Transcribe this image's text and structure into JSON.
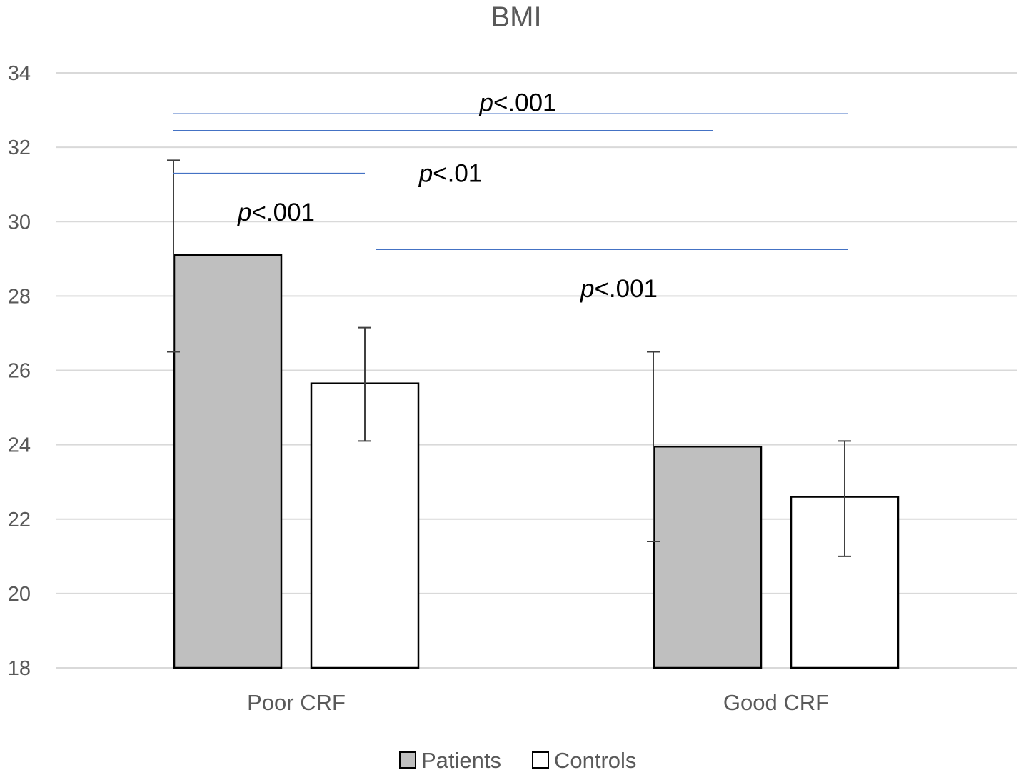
{
  "chart_data": {
    "type": "bar",
    "title": "BMI",
    "xlabel": "",
    "ylabel": "",
    "ylim": [
      18,
      34
    ],
    "yticks": [
      18,
      20,
      22,
      24,
      26,
      28,
      30,
      32,
      34
    ],
    "categories": [
      "Poor CRF",
      "Good CRF"
    ],
    "series": [
      {
        "name": "Patients",
        "color": "#bfbfbf",
        "values": [
          29.1,
          23.95
        ],
        "err_low": [
          26.5,
          21.4
        ],
        "err_high": [
          31.65,
          26.5
        ]
      },
      {
        "name": "Controls",
        "color": "#ffffff",
        "values": [
          25.65,
          22.6
        ],
        "err_low": [
          24.1,
          21.0
        ],
        "err_high": [
          27.15,
          24.1
        ]
      }
    ],
    "legend_position": "bottom",
    "grid": true,
    "annotations": [
      {
        "p_symbol": "p",
        "p_value": "<.001",
        "from": {
          "category": 0,
          "series": 0
        },
        "to": {
          "category": 1,
          "series": 1
        },
        "line_y": 32.9,
        "label_y": 33.2,
        "color": "#4472c4"
      },
      {
        "p_symbol": "p",
        "p_value": "<.01",
        "from": {
          "category": 0,
          "series": 0
        },
        "to": {
          "category": 1,
          "series": 0
        },
        "line_y": 32.45,
        "label_y": 31.3,
        "color": "#4472c4"
      },
      {
        "p_symbol": "p",
        "p_value": "<.001",
        "from": {
          "category": 0,
          "series": 0
        },
        "to": {
          "category": 0,
          "series": 1
        },
        "line_y": 31.3,
        "label_y": 30.25,
        "color": "#4472c4"
      },
      {
        "p_symbol": "p",
        "p_value": "<.001",
        "from": {
          "category": 0,
          "series": 1
        },
        "to": {
          "category": 1,
          "series": 1
        },
        "line_y": 29.25,
        "label_y": 28.2,
        "color": "#4472c4"
      }
    ]
  }
}
